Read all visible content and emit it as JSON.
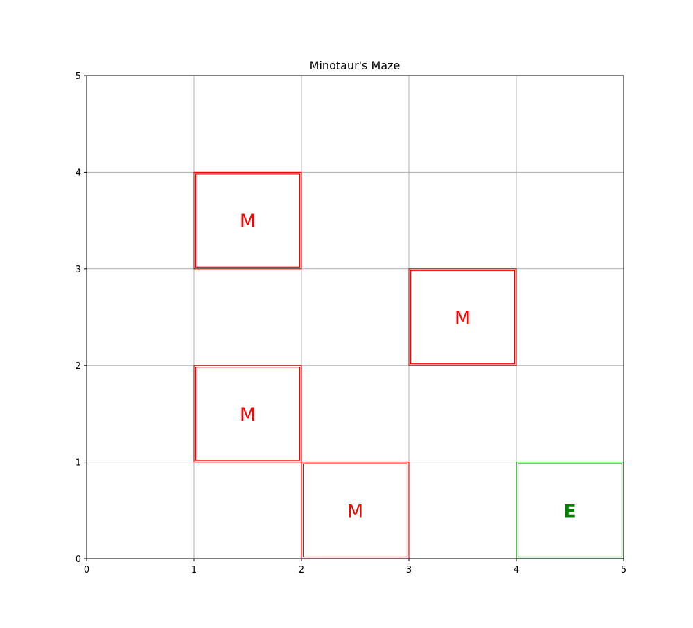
{
  "chart_data": {
    "type": "heatmap",
    "title": "Minotaur's Maze",
    "xlabel": "",
    "ylabel": "",
    "xlim": [
      0,
      5
    ],
    "ylim": [
      0,
      5
    ],
    "x_ticks": [
      "0",
      "1",
      "2",
      "3",
      "4",
      "5"
    ],
    "y_ticks": [
      "0",
      "1",
      "2",
      "3",
      "4",
      "5"
    ],
    "grid": true,
    "colors": {
      "minotaur": "#ff0000",
      "exit": "#008000",
      "grid": "#b0b0b0"
    },
    "cells": [
      {
        "x": 1,
        "y": 3,
        "label": "M",
        "kind": "minotaur"
      },
      {
        "x": 3,
        "y": 2,
        "label": "M",
        "kind": "minotaur"
      },
      {
        "x": 1,
        "y": 1,
        "label": "M",
        "kind": "minotaur"
      },
      {
        "x": 2,
        "y": 0,
        "label": "M",
        "kind": "minotaur"
      },
      {
        "x": 4,
        "y": 0,
        "label": "E",
        "kind": "exit"
      }
    ]
  }
}
